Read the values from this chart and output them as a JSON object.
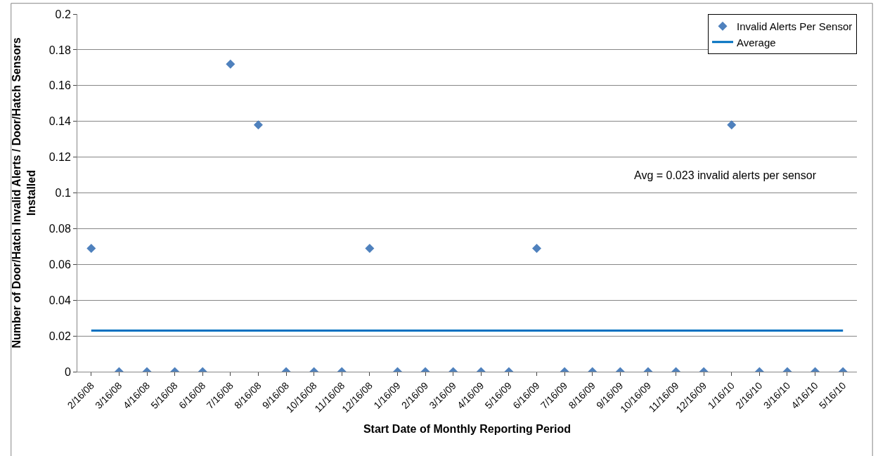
{
  "chart_data": {
    "type": "scatter",
    "xlabel": "Start Date of Monthly Reporting Period",
    "ylabel": "Number of Door/Hatch Invalid Alerts / Door/Hatch Sensors Installed",
    "categories": [
      "2/16/08",
      "3/16/08",
      "4/16/08",
      "5/16/08",
      "6/16/08",
      "7/16/08",
      "8/16/08",
      "9/16/08",
      "10/16/08",
      "11/16/08",
      "12/16/08",
      "1/16/09",
      "2/16/09",
      "3/16/09",
      "4/16/09",
      "5/16/09",
      "6/16/09",
      "7/16/09",
      "8/16/09",
      "9/16/09",
      "10/16/09",
      "11/16/09",
      "12/16/09",
      "1/16/10",
      "2/16/10",
      "3/16/10",
      "4/16/10",
      "5/16/10"
    ],
    "series": [
      {
        "name": "Invalid Alerts Per Sensor",
        "color": "#4f81bd",
        "marker": "diamond",
        "values": [
          0.069,
          0,
          0,
          0,
          0,
          0.172,
          0.138,
          0,
          0,
          0,
          0.069,
          0,
          0,
          0,
          0,
          0,
          0.069,
          0,
          0,
          0,
          0,
          0,
          0,
          0.138,
          0,
          0,
          0,
          0
        ]
      },
      {
        "name": "Average",
        "type": "line",
        "color": "#0070c0",
        "line_style": "solid",
        "values": [
          0.023,
          0.023,
          0.023,
          0.023,
          0.023,
          0.023,
          0.023,
          0.023,
          0.023,
          0.023,
          0.023,
          0.023,
          0.023,
          0.023,
          0.023,
          0.023,
          0.023,
          0.023,
          0.023,
          0.023,
          0.023,
          0.023,
          0.023,
          0.023,
          0.023,
          0.023,
          0.023,
          0.023
        ]
      }
    ],
    "ylim": [
      0,
      0.2
    ],
    "yticks": [
      0,
      0.02,
      0.04,
      0.06,
      0.08,
      0.1,
      0.12,
      0.14,
      0.16,
      0.18,
      0.2
    ],
    "grid": "y",
    "legend": "top right",
    "annotations": [
      "Avg = 0.023 invalid alerts per sensor"
    ]
  }
}
